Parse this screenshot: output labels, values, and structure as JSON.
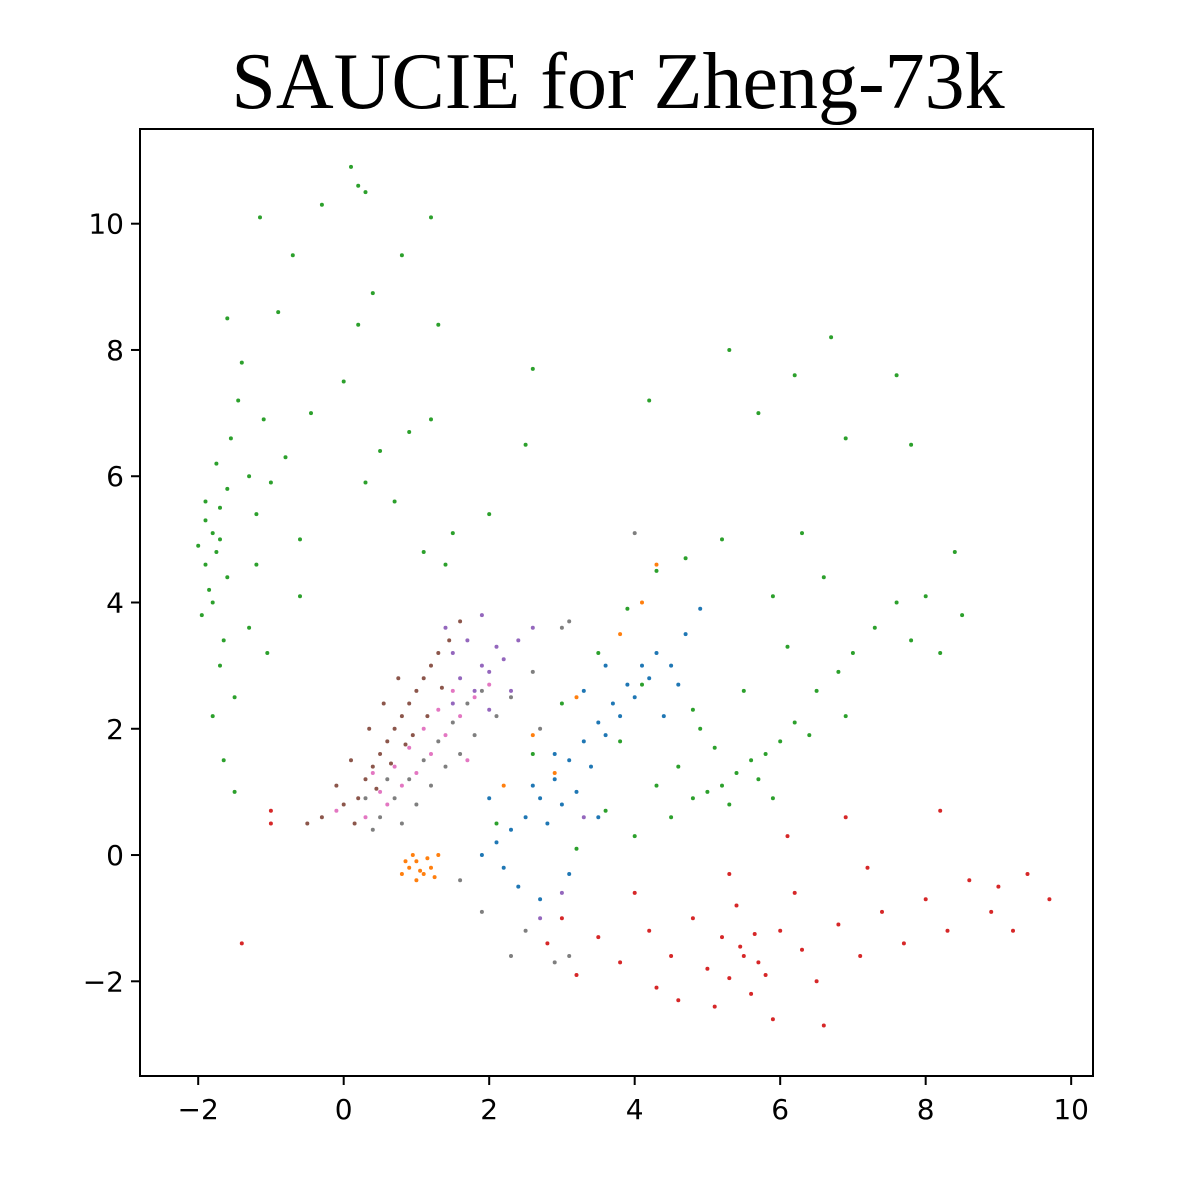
{
  "chart_data": {
    "type": "scatter",
    "title": "SAUCIE for Zheng-73k",
    "xlabel": "",
    "ylabel": "",
    "xlim": [
      -2.8,
      10.3
    ],
    "ylim": [
      -3.5,
      11.5
    ],
    "x_ticks": [
      -2,
      0,
      2,
      4,
      6,
      8,
      10
    ],
    "y_ticks": [
      -2,
      0,
      2,
      4,
      6,
      8,
      10
    ],
    "x_tick_labels": [
      "−2",
      "0",
      "2",
      "4",
      "6",
      "8",
      "10"
    ],
    "y_tick_labels": [
      "−2",
      "0",
      "2",
      "4",
      "6",
      "8",
      "10"
    ],
    "grid": false,
    "legend": "none",
    "marker_size": 2,
    "series": [
      {
        "color": "#2ca02c",
        "points": [
          [
            -1.8,
            5.1
          ],
          [
            -1.9,
            4.6
          ],
          [
            -1.7,
            5.5
          ],
          [
            -1.85,
            4.2
          ],
          [
            -1.6,
            5.8
          ],
          [
            -1.95,
            3.8
          ],
          [
            -1.75,
            6.2
          ],
          [
            -1.65,
            3.4
          ],
          [
            -2.0,
            4.9
          ],
          [
            -1.55,
            6.6
          ],
          [
            -1.7,
            3.0
          ],
          [
            -1.5,
            2.5
          ],
          [
            -1.45,
            7.2
          ],
          [
            -1.3,
            6.0
          ],
          [
            -1.4,
            7.8
          ],
          [
            -1.6,
            8.5
          ],
          [
            -1.2,
            5.4
          ],
          [
            -1.1,
            6.9
          ],
          [
            -1.0,
            5.9
          ],
          [
            -0.8,
            6.3
          ],
          [
            -0.6,
            5.0
          ],
          [
            -0.9,
            8.6
          ],
          [
            -0.7,
            9.5
          ],
          [
            -1.15,
            10.1
          ],
          [
            -0.3,
            10.3
          ],
          [
            0.1,
            10.9
          ],
          [
            0.2,
            10.6
          ],
          [
            0.3,
            10.5
          ],
          [
            1.2,
            10.1
          ],
          [
            -0.45,
            7.0
          ],
          [
            0.0,
            7.5
          ],
          [
            0.2,
            8.4
          ],
          [
            0.4,
            8.9
          ],
          [
            0.8,
            9.5
          ],
          [
            1.3,
            8.4
          ],
          [
            0.5,
            6.4
          ],
          [
            0.9,
            6.7
          ],
          [
            1.2,
            6.9
          ],
          [
            1.5,
            5.1
          ],
          [
            2.0,
            5.4
          ],
          [
            2.6,
            7.7
          ],
          [
            2.5,
            6.5
          ],
          [
            4.2,
            7.2
          ],
          [
            -1.65,
            1.5
          ],
          [
            -1.8,
            2.2
          ],
          [
            -1.5,
            1.0
          ],
          [
            -1.3,
            3.6
          ],
          [
            -1.2,
            4.6
          ],
          [
            -1.05,
            3.2
          ],
          [
            -0.6,
            4.1
          ],
          [
            0.3,
            5.9
          ],
          [
            0.7,
            5.6
          ],
          [
            1.1,
            4.8
          ],
          [
            1.4,
            4.6
          ],
          [
            2.1,
            0.5
          ],
          [
            2.6,
            1.6
          ],
          [
            3.0,
            2.4
          ],
          [
            3.5,
            3.2
          ],
          [
            3.9,
            3.9
          ],
          [
            4.3,
            4.5
          ],
          [
            4.7,
            4.7
          ],
          [
            5.2,
            5.0
          ],
          [
            5.0,
            1.0
          ],
          [
            5.2,
            1.1
          ],
          [
            5.4,
            1.3
          ],
          [
            5.6,
            1.5
          ],
          [
            5.8,
            1.6
          ],
          [
            6.0,
            1.8
          ],
          [
            5.3,
            0.8
          ],
          [
            5.7,
            1.2
          ],
          [
            6.2,
            2.1
          ],
          [
            6.5,
            2.6
          ],
          [
            6.8,
            2.9
          ],
          [
            7.0,
            3.2
          ],
          [
            7.3,
            3.6
          ],
          [
            7.6,
            4.0
          ],
          [
            8.0,
            4.1
          ],
          [
            8.5,
            3.8
          ],
          [
            8.2,
            3.2
          ],
          [
            7.8,
            3.4
          ],
          [
            6.9,
            2.2
          ],
          [
            6.4,
            1.9
          ],
          [
            4.5,
            0.6
          ],
          [
            4.0,
            0.3
          ],
          [
            3.6,
            0.7
          ],
          [
            3.2,
            0.1
          ],
          [
            4.8,
            0.9
          ],
          [
            4.6,
            1.4
          ],
          [
            4.9,
            2.0
          ],
          [
            5.5,
            2.6
          ],
          [
            6.1,
            3.3
          ],
          [
            6.6,
            4.4
          ],
          [
            5.3,
            8.0
          ],
          [
            6.2,
            7.6
          ],
          [
            6.7,
            8.2
          ],
          [
            7.6,
            7.6
          ],
          [
            5.7,
            7.0
          ],
          [
            6.9,
            6.6
          ],
          [
            7.8,
            6.5
          ],
          [
            8.4,
            4.8
          ],
          [
            6.3,
            5.1
          ],
          [
            5.9,
            4.1
          ],
          [
            4.8,
            2.3
          ],
          [
            5.1,
            1.7
          ],
          [
            5.9,
            0.9
          ],
          [
            4.3,
            1.1
          ],
          [
            3.8,
            1.8
          ],
          [
            4.1,
            2.7
          ],
          [
            -1.9,
            5.6
          ],
          [
            -1.75,
            4.8
          ],
          [
            -1.8,
            4.0
          ],
          [
            -1.6,
            4.4
          ],
          [
            -1.9,
            5.3
          ],
          [
            -1.7,
            5.0
          ]
        ]
      },
      {
        "color": "#d62728",
        "points": [
          [
            5.5,
            -1.6
          ],
          [
            5.2,
            -1.3
          ],
          [
            5.8,
            -1.9
          ],
          [
            5.0,
            -1.8
          ],
          [
            6.0,
            -1.2
          ],
          [
            5.6,
            -2.2
          ],
          [
            4.8,
            -1.0
          ],
          [
            6.3,
            -1.5
          ],
          [
            5.4,
            -0.8
          ],
          [
            4.5,
            -1.6
          ],
          [
            6.5,
            -2.0
          ],
          [
            5.1,
            -2.4
          ],
          [
            4.2,
            -1.2
          ],
          [
            6.8,
            -1.1
          ],
          [
            5.9,
            -2.6
          ],
          [
            3.8,
            -1.7
          ],
          [
            7.1,
            -1.6
          ],
          [
            4.6,
            -2.3
          ],
          [
            6.2,
            -0.6
          ],
          [
            3.5,
            -1.3
          ],
          [
            7.4,
            -0.9
          ],
          [
            3.2,
            -1.9
          ],
          [
            7.7,
            -1.4
          ],
          [
            4.0,
            -0.6
          ],
          [
            6.6,
            -2.7
          ],
          [
            3.0,
            -1.0
          ],
          [
            8.0,
            -0.7
          ],
          [
            8.3,
            -1.2
          ],
          [
            8.6,
            -0.4
          ],
          [
            9.0,
            -0.5
          ],
          [
            9.4,
            -0.3
          ],
          [
            9.7,
            -0.7
          ],
          [
            9.2,
            -1.2
          ],
          [
            8.9,
            -0.9
          ],
          [
            7.2,
            -0.2
          ],
          [
            6.9,
            0.6
          ],
          [
            5.3,
            -0.3
          ],
          [
            4.3,
            -2.1
          ],
          [
            2.8,
            -1.4
          ],
          [
            6.1,
            0.3
          ],
          [
            -1.4,
            -1.4
          ],
          [
            -1.0,
            0.5
          ],
          [
            -1.0,
            0.7
          ],
          [
            8.2,
            0.7
          ],
          [
            5.7,
            -1.7
          ],
          [
            5.45,
            -1.45
          ],
          [
            5.65,
            -1.25
          ],
          [
            5.3,
            -1.95
          ]
        ]
      },
      {
        "color": "#8c564b",
        "points": [
          [
            0.3,
            1.2
          ],
          [
            0.5,
            1.6
          ],
          [
            0.7,
            2.0
          ],
          [
            0.9,
            2.4
          ],
          [
            1.1,
            2.8
          ],
          [
            1.3,
            3.2
          ],
          [
            0.2,
            0.9
          ],
          [
            0.4,
            1.4
          ],
          [
            0.6,
            1.8
          ],
          [
            0.8,
            2.2
          ],
          [
            1.0,
            2.6
          ],
          [
            1.2,
            3.0
          ],
          [
            0.0,
            0.8
          ],
          [
            -0.1,
            1.1
          ],
          [
            0.1,
            1.5
          ],
          [
            0.35,
            2.0
          ],
          [
            0.55,
            2.4
          ],
          [
            0.75,
            2.8
          ],
          [
            1.45,
            3.4
          ],
          [
            -0.3,
            0.6
          ],
          [
            -0.5,
            0.5
          ],
          [
            1.6,
            3.7
          ],
          [
            0.95,
            1.9
          ],
          [
            1.15,
            2.2
          ],
          [
            0.45,
            1.05
          ],
          [
            0.65,
            1.45
          ],
          [
            0.85,
            1.75
          ],
          [
            1.35,
            2.65
          ],
          [
            0.15,
            0.5
          ]
        ]
      },
      {
        "color": "#7f7f7f",
        "points": [
          [
            0.9,
            1.2
          ],
          [
            1.1,
            1.5
          ],
          [
            1.3,
            1.8
          ],
          [
            0.7,
            0.9
          ],
          [
            0.5,
            0.6
          ],
          [
            1.5,
            2.1
          ],
          [
            1.0,
            0.8
          ],
          [
            0.8,
            0.5
          ],
          [
            1.2,
            1.1
          ],
          [
            1.4,
            1.4
          ],
          [
            0.6,
            1.2
          ],
          [
            1.7,
            2.4
          ],
          [
            1.9,
            2.6
          ],
          [
            2.1,
            2.2
          ],
          [
            0.4,
            0.4
          ],
          [
            0.3,
            0.9
          ],
          [
            1.6,
            1.6
          ],
          [
            1.8,
            1.9
          ],
          [
            2.3,
            2.5
          ],
          [
            2.6,
            2.9
          ],
          [
            3.0,
            3.6
          ],
          [
            3.1,
            3.7
          ],
          [
            4.0,
            5.1
          ],
          [
            2.3,
            -1.6
          ],
          [
            2.5,
            -1.2
          ],
          [
            2.9,
            -1.7
          ],
          [
            3.1,
            -1.6
          ],
          [
            1.9,
            -0.9
          ],
          [
            1.6,
            -0.4
          ],
          [
            2.7,
            2.0
          ]
        ]
      },
      {
        "color": "#1f77b4",
        "points": [
          [
            2.5,
            0.6
          ],
          [
            2.7,
            0.9
          ],
          [
            2.9,
            1.2
          ],
          [
            3.1,
            1.5
          ],
          [
            3.3,
            1.8
          ],
          [
            3.5,
            2.1
          ],
          [
            3.7,
            2.4
          ],
          [
            3.9,
            2.7
          ],
          [
            4.1,
            3.0
          ],
          [
            4.3,
            3.2
          ],
          [
            2.3,
            0.4
          ],
          [
            2.1,
            0.2
          ],
          [
            1.9,
            0.0
          ],
          [
            2.6,
            1.1
          ],
          [
            2.8,
            0.5
          ],
          [
            3.0,
            0.8
          ],
          [
            3.2,
            1.0
          ],
          [
            3.4,
            1.4
          ],
          [
            3.6,
            1.9
          ],
          [
            3.8,
            2.2
          ],
          [
            4.0,
            2.5
          ],
          [
            4.2,
            2.8
          ],
          [
            4.5,
            3.0
          ],
          [
            4.7,
            3.5
          ],
          [
            4.9,
            3.9
          ],
          [
            2.2,
            -0.2
          ],
          [
            2.4,
            -0.5
          ],
          [
            2.7,
            -0.7
          ],
          [
            3.1,
            -0.3
          ],
          [
            2.0,
            0.9
          ],
          [
            3.3,
            2.6
          ],
          [
            3.6,
            3.0
          ],
          [
            4.4,
            2.2
          ],
          [
            2.9,
            1.6
          ],
          [
            3.5,
            0.6
          ],
          [
            4.6,
            2.7
          ]
        ]
      },
      {
        "color": "#e377c2",
        "points": [
          [
            0.5,
            1.0
          ],
          [
            0.7,
            1.4
          ],
          [
            0.9,
            1.7
          ],
          [
            1.1,
            2.0
          ],
          [
            1.3,
            2.3
          ],
          [
            1.5,
            2.6
          ],
          [
            0.3,
            0.6
          ],
          [
            0.6,
            0.8
          ],
          [
            0.8,
            1.1
          ],
          [
            1.0,
            1.3
          ],
          [
            1.2,
            1.6
          ],
          [
            1.4,
            1.9
          ],
          [
            1.6,
            2.2
          ],
          [
            1.8,
            2.5
          ],
          [
            2.0,
            2.7
          ],
          [
            0.4,
            1.3
          ],
          [
            -0.1,
            0.7
          ],
          [
            1.7,
            1.5
          ]
        ]
      },
      {
        "color": "#9467bd",
        "points": [
          [
            1.5,
            3.2
          ],
          [
            1.7,
            3.4
          ],
          [
            1.9,
            3.0
          ],
          [
            2.1,
            3.3
          ],
          [
            1.6,
            2.8
          ],
          [
            1.8,
            2.6
          ],
          [
            2.0,
            2.9
          ],
          [
            2.2,
            3.1
          ],
          [
            2.4,
            3.4
          ],
          [
            2.6,
            3.6
          ],
          [
            1.4,
            3.6
          ],
          [
            1.9,
            3.8
          ],
          [
            2.3,
            2.6
          ],
          [
            2.0,
            2.3
          ],
          [
            1.5,
            2.4
          ],
          [
            3.0,
            -0.6
          ],
          [
            2.7,
            -1.0
          ],
          [
            3.3,
            0.6
          ]
        ]
      },
      {
        "color": "#ff7f0e",
        "points": [
          [
            0.9,
            -0.2
          ],
          [
            1.0,
            -0.1
          ],
          [
            1.1,
            -0.3
          ],
          [
            0.8,
            -0.3
          ],
          [
            1.2,
            -0.2
          ],
          [
            1.0,
            -0.4
          ],
          [
            0.95,
            0.0
          ],
          [
            1.15,
            -0.05
          ],
          [
            1.3,
            0.0
          ],
          [
            0.85,
            -0.1
          ],
          [
            1.05,
            -0.25
          ],
          [
            1.25,
            -0.35
          ],
          [
            2.6,
            1.9
          ],
          [
            3.2,
            2.5
          ],
          [
            3.8,
            3.5
          ],
          [
            4.1,
            4.0
          ],
          [
            4.3,
            4.6
          ],
          [
            2.9,
            1.3
          ],
          [
            2.2,
            1.1
          ]
        ]
      }
    ]
  }
}
